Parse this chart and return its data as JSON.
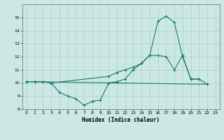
{
  "background_color": "#cce8e4",
  "grid_color": "#aacccc",
  "line_color": "#1a7a6e",
  "xlabel": "Humidex (Indice chaleur)",
  "xlim": [
    -0.5,
    23.5
  ],
  "ylim": [
    8,
    16
  ],
  "yticks": [
    8,
    9,
    10,
    11,
    12,
    13,
    14,
    15
  ],
  "xticks": [
    0,
    1,
    2,
    3,
    4,
    5,
    6,
    7,
    8,
    9,
    10,
    11,
    12,
    13,
    14,
    15,
    16,
    17,
    18,
    19,
    20,
    21,
    22,
    23
  ],
  "series1_x": [
    0,
    1,
    2,
    3,
    4,
    5,
    6,
    7,
    8,
    9,
    10,
    11,
    12,
    13,
    14,
    15,
    16,
    17,
    18,
    19,
    20,
    21
  ],
  "series1_y": [
    10.1,
    10.1,
    10.1,
    10.0,
    9.3,
    9.0,
    8.8,
    8.3,
    8.6,
    8.7,
    10.0,
    10.1,
    10.3,
    11.0,
    11.5,
    12.1,
    12.1,
    12.0,
    11.0,
    12.1,
    10.3,
    10.3
  ],
  "series2_x": [
    0,
    1,
    2,
    3,
    10,
    11,
    12,
    13,
    14,
    15,
    16,
    17,
    18,
    19,
    20,
    21,
    22
  ],
  "series2_y": [
    10.1,
    10.1,
    10.1,
    10.0,
    10.5,
    10.8,
    11.0,
    11.2,
    11.5,
    12.1,
    14.7,
    15.1,
    14.6,
    12.0,
    10.3,
    10.3,
    9.9
  ],
  "series3_x": [
    0,
    22
  ],
  "series3_y": [
    10.1,
    9.9
  ]
}
